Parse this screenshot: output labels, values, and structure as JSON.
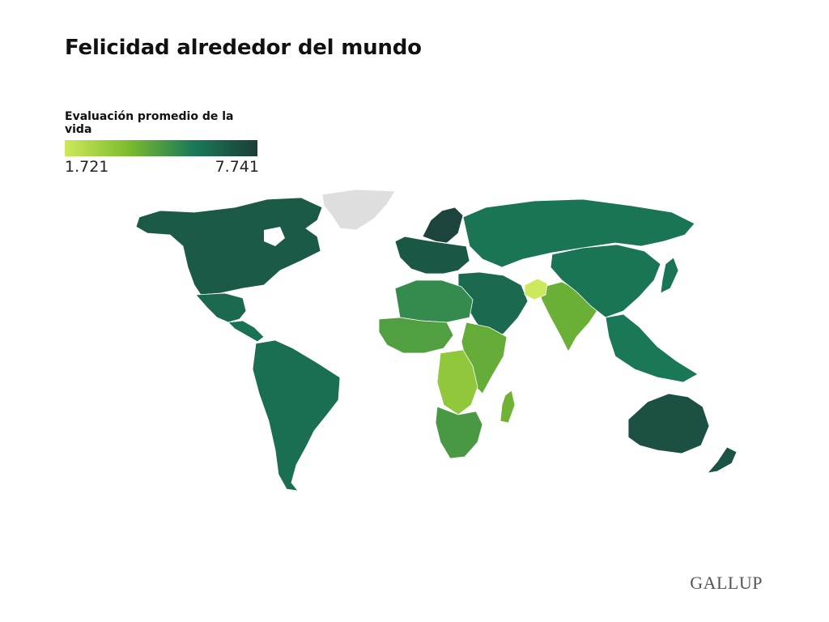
{
  "title": "Felicidad alrededor del mundo",
  "legend": {
    "title": "Evaluación promedio de la vida",
    "min": "1.721",
    "max": "7.741",
    "colors": [
      "#cde85a",
      "#7cbb2e",
      "#1a7a58",
      "#1c3d38"
    ]
  },
  "map": {
    "no_data_color": "#dedede",
    "regions": [
      {
        "name": "north-america",
        "score": 6.8
      },
      {
        "name": "greenland",
        "score": null
      },
      {
        "name": "mexico",
        "score": 6.3
      },
      {
        "name": "central-america",
        "score": 6.0
      },
      {
        "name": "south-america",
        "score": 6.1
      },
      {
        "name": "europe-nordics",
        "score": 7.5
      },
      {
        "name": "western-europe",
        "score": 6.9
      },
      {
        "name": "russia-central-asia",
        "score": 5.9
      },
      {
        "name": "middle-east",
        "score": 6.3
      },
      {
        "name": "north-africa",
        "score": 5.2
      },
      {
        "name": "west-africa",
        "score": 4.6
      },
      {
        "name": "east-africa",
        "score": 4.2
      },
      {
        "name": "central-africa",
        "score": 3.2
      },
      {
        "name": "southern-africa",
        "score": 4.8
      },
      {
        "name": "south-asia",
        "score": 4.1
      },
      {
        "name": "afghanistan",
        "score": 1.721
      },
      {
        "name": "east-asia",
        "score": 5.9
      },
      {
        "name": "southeast-asia",
        "score": 5.8
      },
      {
        "name": "australia",
        "score": 7.1
      },
      {
        "name": "new-zealand",
        "score": 7.0
      },
      {
        "name": "madagascar",
        "score": 4.0
      }
    ]
  },
  "logo": "GALLUP"
}
